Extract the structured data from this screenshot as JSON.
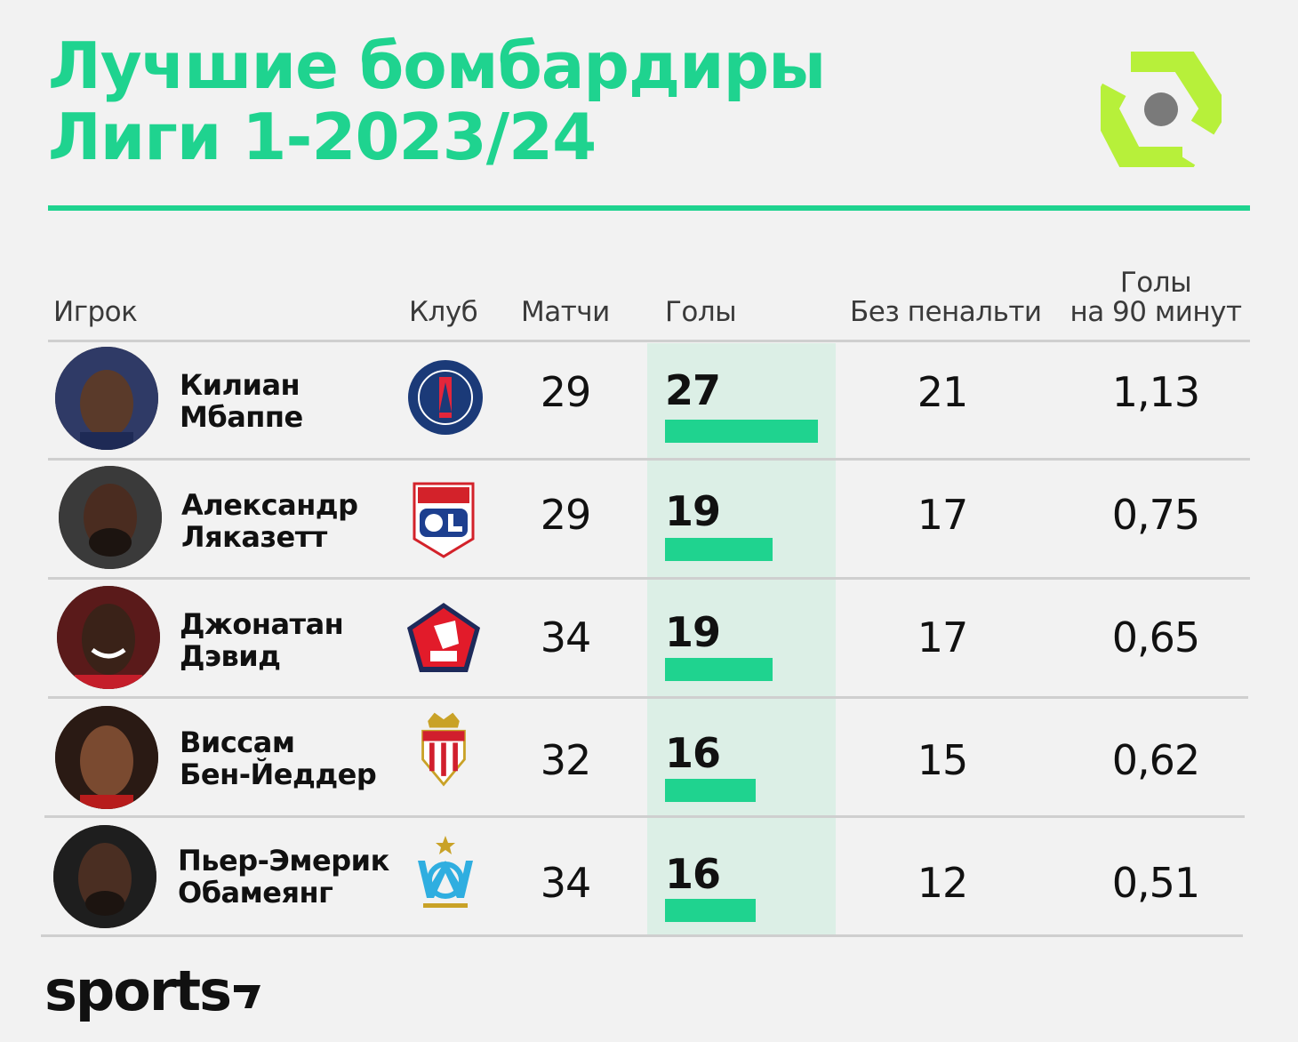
{
  "title_line1": "Лучшие бомбардиры",
  "title_line2": "Лиги 1-2023/24",
  "brand": "sports",
  "colors": {
    "accent": "#1fd38f",
    "league_logo": "#b7f03a",
    "highlight": "#dcefe6",
    "background": "#f2f2f2"
  },
  "headers": {
    "player": "Игрок",
    "club": "Клуб",
    "matches": "Матчи",
    "goals": "Голы",
    "non_penalty": "Без пенальти",
    "per90_line1": "Голы",
    "per90_line2": "на 90 минут"
  },
  "rows": [
    {
      "first": "Килиан",
      "last": "Мбаппе",
      "club_icon": "psg-crest-icon",
      "matches": "29",
      "goals": "27",
      "non_penalty": "21",
      "per90": "1,13"
    },
    {
      "first": "Александр",
      "last": "Ляказетт",
      "club_icon": "lyon-crest-icon",
      "matches": "29",
      "goals": "19",
      "non_penalty": "17",
      "per90": "0,75"
    },
    {
      "first": "Джонатан",
      "last": "Дэвид",
      "club_icon": "lille-crest-icon",
      "matches": "34",
      "goals": "19",
      "non_penalty": "17",
      "per90": "0,65"
    },
    {
      "first": "Виссам",
      "last": "Бен-Йеддер",
      "club_icon": "monaco-crest-icon",
      "matches": "32",
      "goals": "16",
      "non_penalty": "15",
      "per90": "0,62"
    },
    {
      "first": "Пьер-Эмерик",
      "last": "Обамеянг",
      "club_icon": "marseille-crest-icon",
      "matches": "34",
      "goals": "16",
      "non_penalty": "12",
      "per90": "0,51"
    }
  ],
  "chart_data": {
    "type": "table",
    "title": "Лучшие бомбардиры Лиги 1-2023/24",
    "columns": [
      "Игрок",
      "Клуб",
      "Матчи",
      "Голы",
      "Без пенальти",
      "Голы на 90 минут"
    ],
    "bar_column": "Голы",
    "categories": [
      "Килиан Мбаппе",
      "Александр Ляказетт",
      "Джонатан Дэвид",
      "Виссам Бен-Йеддер",
      "Пьер-Эмерик Обамеянг"
    ],
    "series": [
      {
        "name": "Матчи",
        "values": [
          29,
          29,
          34,
          32,
          34
        ]
      },
      {
        "name": "Голы",
        "values": [
          27,
          19,
          19,
          16,
          16
        ]
      },
      {
        "name": "Без пенальти",
        "values": [
          21,
          17,
          17,
          15,
          12
        ]
      },
      {
        "name": "Голы на 90 минут",
        "values": [
          1.13,
          0.75,
          0.65,
          0.62,
          0.51
        ]
      }
    ]
  }
}
